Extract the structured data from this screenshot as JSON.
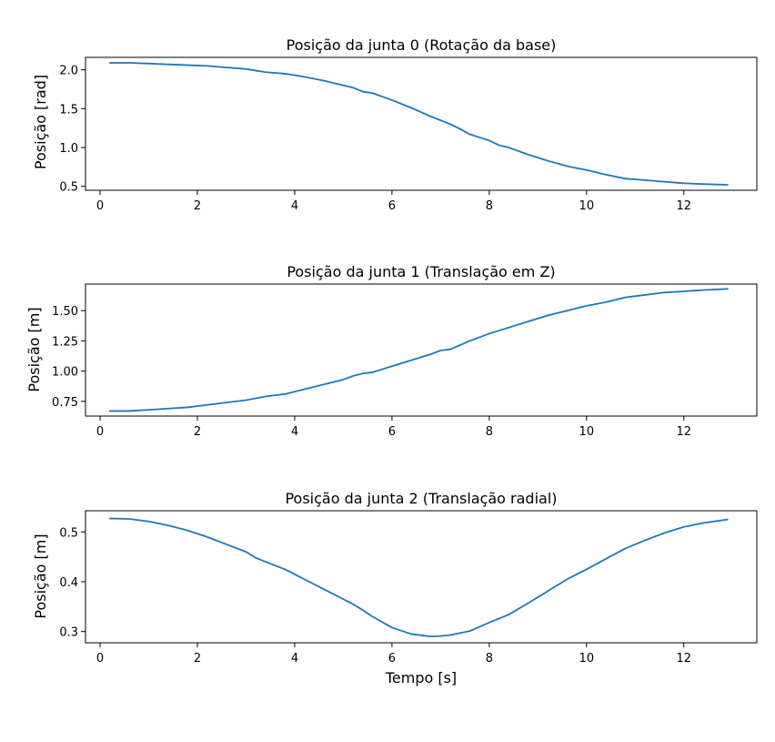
{
  "style": {
    "line_color": "#1f77b4",
    "axis_color": "#000000",
    "background": "#ffffff"
  },
  "chart_data": [
    {
      "type": "line",
      "title": "Posição da junta 0 (Rotação da base)",
      "xlabel": "",
      "ylabel": "Posição [rad]",
      "xlim": [
        -0.3,
        13.5
      ],
      "ylim": [
        0.45,
        2.16
      ],
      "grid": false,
      "xticks": [
        0,
        2,
        4,
        6,
        8,
        10,
        12
      ],
      "xtick_labels": [
        "0",
        "2",
        "4",
        "6",
        "8",
        "10",
        "12"
      ],
      "yticks": [
        0.5,
        1.0,
        1.5,
        2.0
      ],
      "ytick_labels": [
        "0.5",
        "1.0",
        "1.5",
        "2.0"
      ],
      "series": [
        {
          "x": [
            0.2,
            0.6,
            1.0,
            1.4,
            1.8,
            2.2,
            2.6,
            3.0,
            3.4,
            3.8,
            4.0,
            4.2,
            4.6,
            5.0,
            5.2,
            5.4,
            5.6,
            6.0,
            6.4,
            6.8,
            7.2,
            7.4,
            7.6,
            7.8,
            8.0,
            8.2,
            8.4,
            8.8,
            9.2,
            9.6,
            10.0,
            10.4,
            10.8,
            11.2,
            11.6,
            12.0,
            12.4,
            12.9
          ],
          "y": [
            2.09,
            2.09,
            2.08,
            2.07,
            2.06,
            2.05,
            2.03,
            2.01,
            1.97,
            1.95,
            1.93,
            1.91,
            1.86,
            1.8,
            1.77,
            1.72,
            1.7,
            1.61,
            1.51,
            1.4,
            1.3,
            1.24,
            1.17,
            1.13,
            1.09,
            1.03,
            1.0,
            0.91,
            0.83,
            0.76,
            0.71,
            0.65,
            0.6,
            0.58,
            0.56,
            0.54,
            0.53,
            0.52
          ]
        }
      ]
    },
    {
      "type": "line",
      "title": "Posição da junta 1 (Translação em Z)",
      "xlabel": "",
      "ylabel": "Posição [m]",
      "xlim": [
        -0.3,
        13.5
      ],
      "ylim": [
        0.628,
        1.72
      ],
      "grid": false,
      "xticks": [
        0,
        2,
        4,
        6,
        8,
        10,
        12
      ],
      "xtick_labels": [
        "0",
        "2",
        "4",
        "6",
        "8",
        "10",
        "12"
      ],
      "yticks": [
        0.75,
        1.0,
        1.25,
        1.5
      ],
      "ytick_labels": [
        "0.75",
        "1.00",
        "1.25",
        "1.50"
      ],
      "series": [
        {
          "x": [
            0.2,
            0.6,
            1.0,
            1.4,
            1.8,
            2.2,
            2.6,
            3.0,
            3.4,
            3.8,
            4.2,
            4.6,
            5.0,
            5.2,
            5.4,
            5.6,
            6.0,
            6.4,
            6.8,
            7.0,
            7.2,
            7.6,
            8.0,
            8.4,
            8.8,
            9.2,
            9.6,
            10.0,
            10.4,
            10.8,
            11.2,
            11.6,
            12.0,
            12.4,
            12.9
          ],
          "y": [
            0.67,
            0.67,
            0.68,
            0.69,
            0.7,
            0.72,
            0.74,
            0.76,
            0.79,
            0.81,
            0.85,
            0.89,
            0.93,
            0.96,
            0.98,
            0.99,
            1.04,
            1.09,
            1.14,
            1.17,
            1.18,
            1.25,
            1.31,
            1.36,
            1.41,
            1.46,
            1.5,
            1.54,
            1.57,
            1.61,
            1.63,
            1.65,
            1.66,
            1.67,
            1.68
          ]
        }
      ]
    },
    {
      "type": "line",
      "title": "Posição da junta 2 (Translação radial)",
      "xlabel": "Tempo [s]",
      "ylabel": "Posição [m]",
      "xlim": [
        -0.3,
        13.5
      ],
      "ylim": [
        0.2775,
        0.5425
      ],
      "grid": false,
      "xticks": [
        0,
        2,
        4,
        6,
        8,
        10,
        12
      ],
      "xtick_labels": [
        "0",
        "2",
        "4",
        "6",
        "8",
        "10",
        "12"
      ],
      "yticks": [
        0.3,
        0.4,
        0.5
      ],
      "ytick_labels": [
        "0.3",
        "0.4",
        "0.5"
      ],
      "series": [
        {
          "x": [
            0.2,
            0.6,
            1.0,
            1.4,
            1.8,
            2.2,
            2.6,
            3.0,
            3.2,
            3.4,
            3.8,
            4.2,
            4.6,
            5.0,
            5.2,
            5.4,
            5.6,
            6.0,
            6.4,
            6.8,
            7.0,
            7.2,
            7.6,
            8.0,
            8.4,
            8.8,
            9.2,
            9.6,
            10.0,
            10.4,
            10.8,
            11.2,
            11.6,
            12.0,
            12.4,
            12.9
          ],
          "y": [
            0.527,
            0.526,
            0.521,
            0.513,
            0.503,
            0.49,
            0.475,
            0.46,
            0.448,
            0.44,
            0.425,
            0.405,
            0.385,
            0.365,
            0.355,
            0.343,
            0.33,
            0.308,
            0.295,
            0.29,
            0.291,
            0.293,
            0.301,
            0.318,
            0.334,
            0.357,
            0.381,
            0.405,
            0.425,
            0.446,
            0.467,
            0.483,
            0.498,
            0.51,
            0.518,
            0.525
          ]
        }
      ]
    }
  ]
}
